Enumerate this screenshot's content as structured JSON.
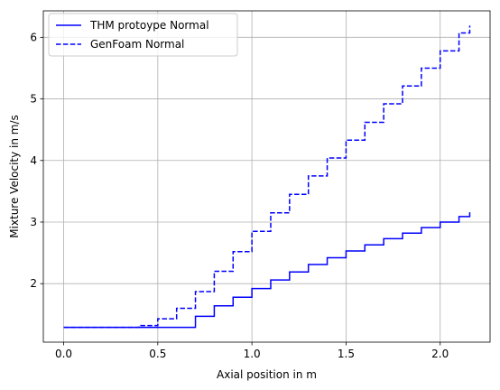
{
  "chart_data": {
    "type": "line",
    "xlabel": "Axial position in m",
    "ylabel": "Mixture Velocity in m/s",
    "xlim": [
      -0.108,
      2.265
    ],
    "ylim": [
      1.05,
      6.43
    ],
    "xticks": [
      0.0,
      0.5,
      1.0,
      1.5,
      2.0
    ],
    "xtick_labels": [
      "0.0",
      "0.5",
      "1.0",
      "1.5",
      "2.0"
    ],
    "yticks": [
      2,
      3,
      4,
      5,
      6
    ],
    "ytick_labels": [
      "2",
      "3",
      "4",
      "5",
      "6"
    ],
    "grid": true,
    "legend_position": "upper-left",
    "series": [
      {
        "name": "THM protoype Normal",
        "style": "solid",
        "color": "#0000ff",
        "step": true,
        "x": [
          0.0,
          0.6,
          0.7,
          0.8,
          0.9,
          1.0,
          1.1,
          1.2,
          1.3,
          1.4,
          1.5,
          1.6,
          1.7,
          1.8,
          1.9,
          2.0,
          2.1,
          2.157
        ],
        "y": [
          1.29,
          1.29,
          1.47,
          1.64,
          1.78,
          1.92,
          2.06,
          2.19,
          2.31,
          2.42,
          2.53,
          2.63,
          2.73,
          2.82,
          2.91,
          3.0,
          3.09,
          3.16
        ]
      },
      {
        "name": "GenFoam Normal",
        "style": "dashed",
        "color": "#0000ff",
        "step": true,
        "x": [
          0.0,
          0.4,
          0.5,
          0.6,
          0.7,
          0.8,
          0.9,
          1.0,
          1.1,
          1.2,
          1.3,
          1.4,
          1.5,
          1.6,
          1.7,
          1.8,
          1.9,
          2.0,
          2.1,
          2.157
        ],
        "y": [
          1.29,
          1.32,
          1.43,
          1.6,
          1.87,
          2.2,
          2.52,
          2.85,
          3.15,
          3.45,
          3.75,
          4.04,
          4.33,
          4.62,
          4.92,
          5.21,
          5.5,
          5.78,
          6.07,
          6.19
        ]
      }
    ]
  }
}
